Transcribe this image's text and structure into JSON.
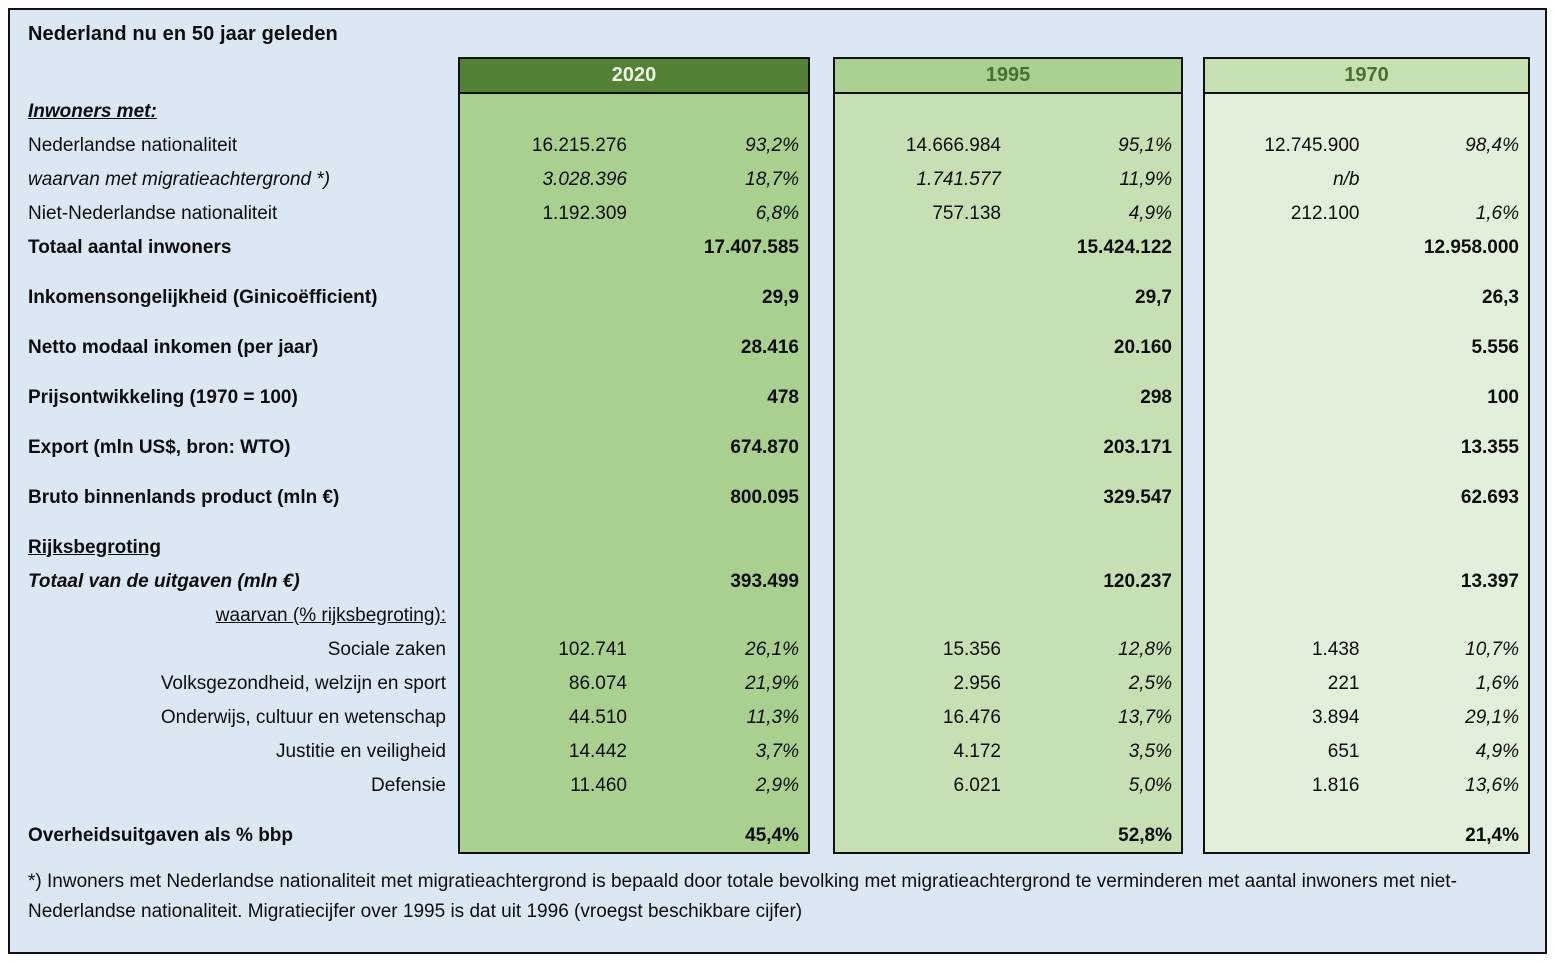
{
  "title": "Nederland nu en 50 jaar geleden",
  "colors": {
    "page_background": "#dbe8f4",
    "border": "#101010",
    "header_2020_bg": "#538135",
    "header_2020_text": "#eef5e6",
    "header_1995_bg": "#a9d08e",
    "header_1970_bg": "#c6e0b4",
    "header_light_text": "#4a7030",
    "body_2020_bg": "#a9d08e",
    "body_1995_bg": "#c6e0b4",
    "body_1970_bg": "#e2efda"
  },
  "years": [
    {
      "label": "2020",
      "header_bg": "#538135",
      "header_fg": "#eef5e6",
      "body_bg": "#a9d08e"
    },
    {
      "label": "1995",
      "header_bg": "#a9d08e",
      "header_fg": "#4a7030",
      "body_bg": "#c6e0b4"
    },
    {
      "label": "1970",
      "header_bg": "#c6e0b4",
      "header_fg": "#4a7030",
      "body_bg": "#e2efda"
    }
  ],
  "rows": [
    {
      "type": "section",
      "label": "Inwoners met:",
      "label_style": "b i u"
    },
    {
      "type": "data",
      "label": "Nederlandse nationaliteit",
      "cells": [
        [
          "16.215.276",
          "93,2%"
        ],
        [
          "14.666.984",
          "95,1%"
        ],
        [
          "12.745.900",
          "98,4%"
        ]
      ]
    },
    {
      "type": "data",
      "label": "waarvan met migratieachtergrond *)",
      "label_style": "i",
      "value_style": "i",
      "cells": [
        [
          "3.028.396",
          "18,7%"
        ],
        [
          "1.741.577",
          "11,9%"
        ],
        [
          "n/b",
          ""
        ]
      ]
    },
    {
      "type": "data",
      "label": "Niet-Nederlandse nationaliteit",
      "cells": [
        [
          "1.192.309",
          "6,8%"
        ],
        [
          "757.138",
          "4,9%"
        ],
        [
          "212.100",
          "1,6%"
        ]
      ]
    },
    {
      "type": "total",
      "label": "Totaal aantal inwoners",
      "label_style": "b",
      "cells": [
        "17.407.585",
        "15.424.122",
        "12.958.000"
      ]
    },
    {
      "type": "spacer"
    },
    {
      "type": "total",
      "label": "Inkomensongelijkheid (Ginicoëfficient)",
      "label_style": "b",
      "cells": [
        "29,9",
        "29,7",
        "26,3"
      ]
    },
    {
      "type": "spacer"
    },
    {
      "type": "total",
      "label": "Netto modaal inkomen (per jaar)",
      "label_style": "b",
      "cells": [
        "28.416",
        "20.160",
        "5.556"
      ]
    },
    {
      "type": "spacer"
    },
    {
      "type": "total",
      "label": "Prijsontwikkeling (1970 = 100)",
      "label_style": "b",
      "cells": [
        "478",
        "298",
        "100"
      ]
    },
    {
      "type": "spacer"
    },
    {
      "type": "total",
      "label": "Export (mln US$, bron: WTO)",
      "label_style": "b",
      "cells": [
        "674.870",
        "203.171",
        "13.355"
      ]
    },
    {
      "type": "spacer"
    },
    {
      "type": "total",
      "label": "Bruto binnenlands product (mln €)",
      "label_style": "b",
      "cells": [
        "800.095",
        "329.547",
        "62.693"
      ]
    },
    {
      "type": "spacer"
    },
    {
      "type": "section",
      "label": "Rijksbegroting",
      "label_style": "b u"
    },
    {
      "type": "total",
      "label": "Totaal van de uitgaven (mln €)",
      "label_style": "b i",
      "cells": [
        "393.499",
        "120.237",
        "13.397"
      ]
    },
    {
      "type": "section",
      "label": "waarvan (% rijksbegroting):",
      "label_style": "u",
      "label_align": "right"
    },
    {
      "type": "data",
      "label": "Sociale zaken",
      "label_align": "right",
      "cells": [
        [
          "102.741",
          "26,1%"
        ],
        [
          "15.356",
          "12,8%"
        ],
        [
          "1.438",
          "10,7%"
        ]
      ]
    },
    {
      "type": "data",
      "label": "Volksgezondheid, welzijn en sport",
      "label_align": "right",
      "cells": [
        [
          "86.074",
          "21,9%"
        ],
        [
          "2.956",
          "2,5%"
        ],
        [
          "221",
          "1,6%"
        ]
      ]
    },
    {
      "type": "data",
      "label": "Onderwijs, cultuur en wetenschap",
      "label_align": "right",
      "cells": [
        [
          "44.510",
          "11,3%"
        ],
        [
          "16.476",
          "13,7%"
        ],
        [
          "3.894",
          "29,1%"
        ]
      ]
    },
    {
      "type": "data",
      "label": "Justitie en veiligheid",
      "label_align": "right",
      "cells": [
        [
          "14.442",
          "3,7%"
        ],
        [
          "4.172",
          "3,5%"
        ],
        [
          "651",
          "4,9%"
        ]
      ]
    },
    {
      "type": "data",
      "label": "Defensie",
      "label_align": "right",
      "cells": [
        [
          "11.460",
          "2,9%"
        ],
        [
          "6.021",
          "5,0%"
        ],
        [
          "1.816",
          "13,6%"
        ]
      ]
    },
    {
      "type": "spacer"
    },
    {
      "type": "total",
      "label": "Overheidsuitgaven als % bbp",
      "label_style": "b",
      "cells": [
        "45,4%",
        "52,8%",
        "21,4%"
      ]
    }
  ],
  "footnote": "*) Inwoners met Nederlandse nationaliteit met migratieachtergrond is bepaald door totale bevolking met migratieachtergrond te verminderen met aantal inwoners met niet-Nederlandse nationaliteit. Migratiecijfer over 1995 is dat uit 1996 (vroegst beschikbare cijfer)"
}
